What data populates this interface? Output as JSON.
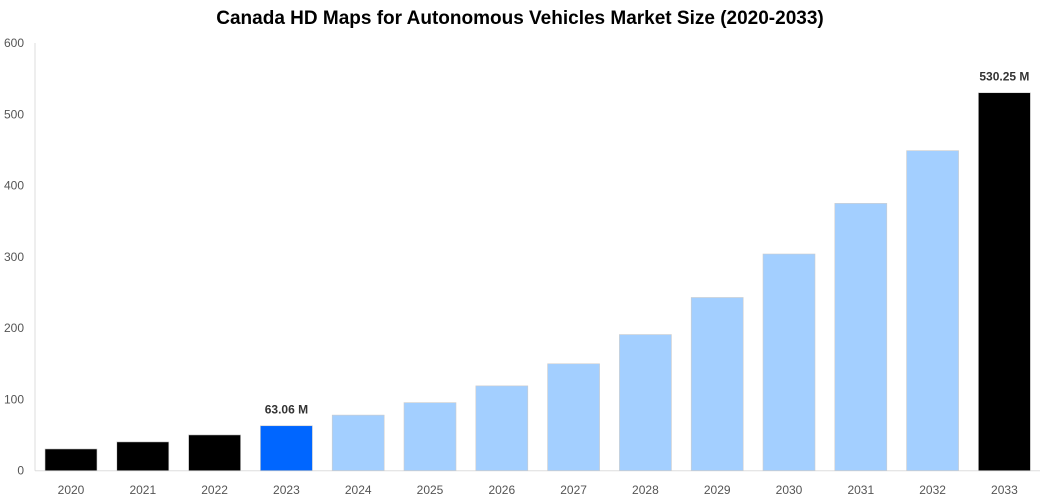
{
  "chart_data": {
    "type": "bar",
    "title": "Canada HD Maps for Autonomous Vehicles Market Size (2020-2033)",
    "xlabel": "",
    "ylabel": "",
    "categories": [
      "2020",
      "2021",
      "2022",
      "2023",
      "2024",
      "2025",
      "2026",
      "2027",
      "2028",
      "2029",
      "2030",
      "2031",
      "2032",
      "2033"
    ],
    "values": [
      30.5,
      40.4,
      50.2,
      63.06,
      78,
      95.5,
      119,
      150,
      191,
      243,
      304,
      375,
      449,
      530.25
    ],
    "bar_colors": [
      "#000000",
      "#000000",
      "#000000",
      "#0066ff",
      "#a3cfff",
      "#a3cfff",
      "#a3cfff",
      "#a3cfff",
      "#a3cfff",
      "#a3cfff",
      "#a3cfff",
      "#a3cfff",
      "#a3cfff",
      "#000000"
    ],
    "data_labels": {
      "3": "63.06 M",
      "13": "530.25 M"
    },
    "ylim": [
      0,
      600
    ],
    "yticks": [
      0,
      100,
      200,
      300,
      400,
      500,
      600
    ],
    "grid": false,
    "legend": "none"
  }
}
